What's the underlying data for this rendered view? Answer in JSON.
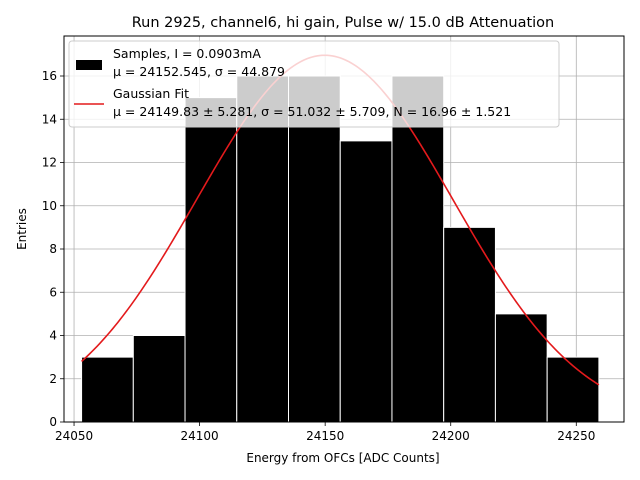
{
  "chart_data": {
    "type": "bar",
    "title": "Run 2925, channel6, hi gain, Pulse w/ 15.0 dB Attenuation",
    "xlabel": "Energy from OFCs [ADC Counts]",
    "ylabel": "Entries",
    "xlim": [
      24046,
      24269
    ],
    "ylim": [
      0,
      17.85
    ],
    "xticks": [
      24050,
      24100,
      24150,
      24200,
      24250
    ],
    "yticks": [
      0,
      2,
      4,
      6,
      8,
      10,
      12,
      14,
      16
    ],
    "grid": true,
    "legend_position": "top-left",
    "histogram": {
      "bin_edges": [
        24053.0,
        24073.6,
        24094.2,
        24114.8,
        24135.4,
        24156.0,
        24176.6,
        24197.2,
        24217.8,
        24238.4,
        24259.0
      ],
      "counts": [
        3,
        4,
        15,
        16,
        16,
        13,
        16,
        9,
        5,
        3
      ],
      "color": "#000000",
      "edgecolor": "#ffffff"
    },
    "fit": {
      "mu": 24149.83,
      "sigma": 51.032,
      "N": 16.96,
      "x_range": [
        24053.0,
        24259.0
      ],
      "color": "#e31a1c"
    },
    "legend": [
      {
        "swatch": "bar",
        "line1": "Samples, I = 0.0903mA",
        "line2": "μ = 24152.545, σ = 44.879"
      },
      {
        "swatch": "line",
        "line1": "Gaussian Fit",
        "line2": "μ = 24149.83 ± 5.281, σ = 51.032 ± 5.709, N = 16.96 ± 1.521"
      }
    ]
  }
}
